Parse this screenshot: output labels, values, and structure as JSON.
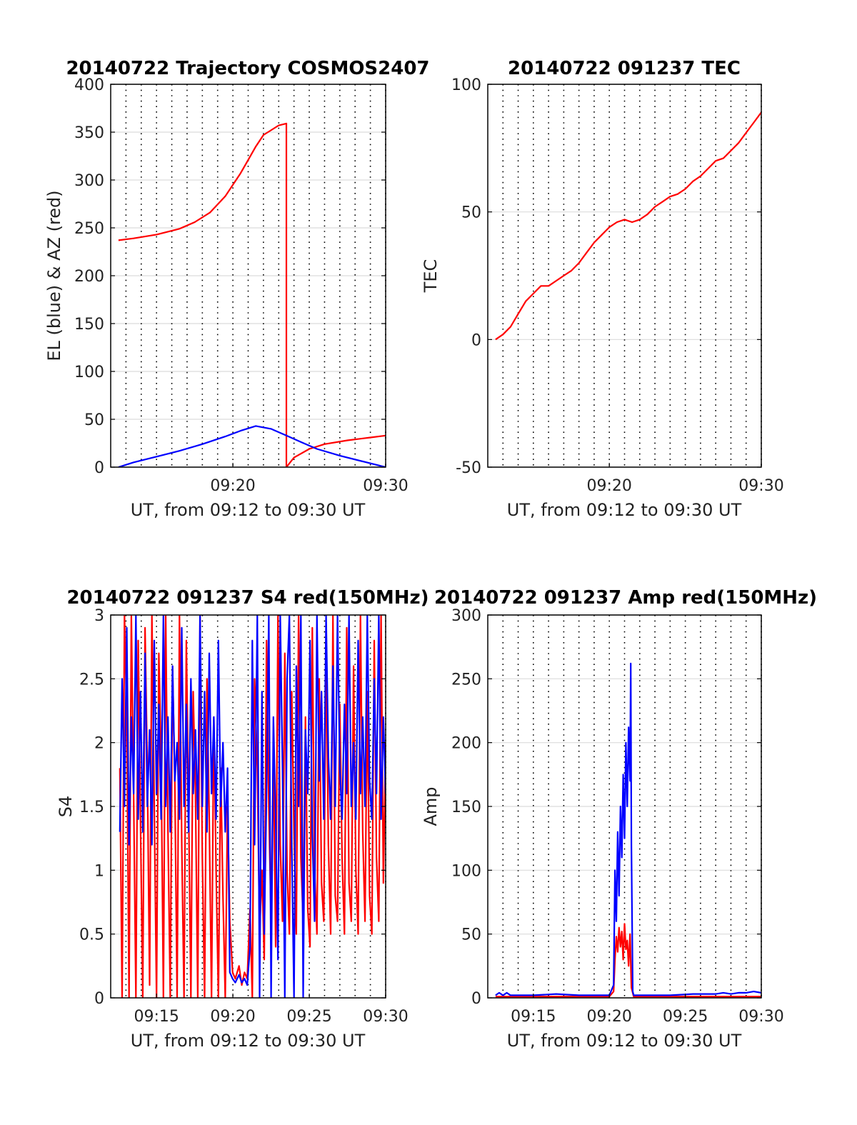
{
  "colors": {
    "el": "#0000ff",
    "az": "#ff0000",
    "grid": "#dcdcdc",
    "vgrid": "#000000",
    "axis": "#000000"
  },
  "chart_data": [
    {
      "id": "trajectory",
      "type": "line",
      "title": "20140722 Trajectory COSMOS2407",
      "xlabel": "UT, from 09:12 to 09:30 UT",
      "ylabel": "EL (blue) & AZ (red)",
      "xlim": [
        9.2,
        9.5
      ],
      "ylim": [
        0,
        400
      ],
      "yticks": [
        {
          "v": 0,
          "label": "0"
        },
        {
          "v": 50,
          "label": "50"
        },
        {
          "v": 100,
          "label": "100"
        },
        {
          "v": 150,
          "label": "150"
        },
        {
          "v": 200,
          "label": "200"
        },
        {
          "v": 250,
          "label": "250"
        },
        {
          "v": 300,
          "label": "300"
        },
        {
          "v": 350,
          "label": "350"
        },
        {
          "v": 400,
          "label": "400"
        }
      ],
      "xticks": [
        {
          "v": 9.3333,
          "label": "09:20"
        },
        {
          "v": 9.5,
          "label": "09:30"
        }
      ],
      "grid": true,
      "series": [
        {
          "name": "AZ",
          "color": "#ff0000",
          "x": [
            9.2085,
            9.225,
            9.25,
            9.275,
            9.2917,
            9.3083,
            9.325,
            9.3417,
            9.35,
            9.3583,
            9.3667,
            9.3833,
            9.3917,
            9.3917,
            9.4,
            9.4167,
            9.4333,
            9.4583,
            9.4833,
            9.5
          ],
          "y": [
            237,
            239,
            243,
            249,
            256,
            266,
            283,
            307,
            321,
            335,
            347,
            357,
            359,
            0,
            10,
            19,
            24,
            28,
            31,
            33
          ]
        },
        {
          "name": "EL",
          "color": "#0000ff",
          "x": [
            9.2085,
            9.225,
            9.25,
            9.275,
            9.3,
            9.325,
            9.3417,
            9.3583,
            9.375,
            9.3917,
            9.4083,
            9.425,
            9.45,
            9.475,
            9.5
          ],
          "y": [
            0,
            5,
            11,
            17,
            24,
            32,
            38,
            43,
            40,
            33,
            26,
            19,
            12,
            6,
            0
          ]
        }
      ]
    },
    {
      "id": "tec",
      "type": "line",
      "title": "20140722 091237 TEC",
      "xlabel": "UT, from 09:12 to 09:30 UT",
      "ylabel": "TEC",
      "xlim": [
        9.2,
        9.5
      ],
      "ylim": [
        -50,
        100
      ],
      "yticks": [
        {
          "v": -50,
          "label": "-50"
        },
        {
          "v": 0,
          "label": "0"
        },
        {
          "v": 50,
          "label": "50"
        },
        {
          "v": 100,
          "label": "100"
        }
      ],
      "xticks": [
        {
          "v": 9.3333,
          "label": "09:20"
        },
        {
          "v": 9.5,
          "label": "09:30"
        }
      ],
      "grid": true,
      "series": [
        {
          "name": "TEC",
          "color": "#ff0000",
          "x": [
            9.2085,
            9.2167,
            9.225,
            9.2333,
            9.2417,
            9.25,
            9.2583,
            9.2667,
            9.275,
            9.2833,
            9.2917,
            9.3,
            9.3083,
            9.3167,
            9.325,
            9.3333,
            9.3417,
            9.35,
            9.3583,
            9.3667,
            9.375,
            9.3833,
            9.3917,
            9.4,
            9.4083,
            9.4167,
            9.425,
            9.4333,
            9.4417,
            9.45,
            9.4583,
            9.4667,
            9.475,
            9.4833,
            9.4917,
            9.5
          ],
          "y": [
            0,
            2,
            5,
            10,
            15,
            18,
            21,
            21,
            23,
            25,
            27,
            30,
            34,
            38,
            41,
            44,
            46,
            47,
            46,
            47,
            49,
            52,
            54,
            56,
            57,
            59,
            62,
            64,
            67,
            70,
            71,
            74,
            77,
            81,
            85,
            89
          ]
        }
      ]
    },
    {
      "id": "s4",
      "type": "line",
      "title": "20140722 091237 S4 red(150MHz)",
      "xlabel": "UT, from 09:12 to 09:30 UT",
      "ylabel": "S4",
      "xlim": [
        9.2,
        9.5
      ],
      "ylim": [
        0,
        3
      ],
      "yticks": [
        {
          "v": 0,
          "label": "0"
        },
        {
          "v": 0.5,
          "label": "0.5"
        },
        {
          "v": 1,
          "label": "1"
        },
        {
          "v": 1.5,
          "label": "1.5"
        },
        {
          "v": 2,
          "label": "2"
        },
        {
          "v": 2.5,
          "label": "2.5"
        },
        {
          "v": 3,
          "label": "3"
        }
      ],
      "xticks": [
        {
          "v": 9.25,
          "label": "09:15"
        },
        {
          "v": 9.3333,
          "label": "09:20"
        },
        {
          "v": 9.4167,
          "label": "09:25"
        },
        {
          "v": 9.5,
          "label": "09:30"
        }
      ],
      "grid": true,
      "series": [
        {
          "name": "red",
          "color": "#ff0000",
          "x": [
            9.21,
            9.2125,
            9.215,
            9.2175,
            9.22,
            9.2225,
            9.225,
            9.2275,
            9.23,
            9.2325,
            9.235,
            9.2375,
            9.24,
            9.2425,
            9.245,
            9.2475,
            9.25,
            9.2525,
            9.255,
            9.2575,
            9.26,
            9.2625,
            9.265,
            9.2675,
            9.27,
            9.2725,
            9.275,
            9.2775,
            9.28,
            9.2825,
            9.285,
            9.2875,
            9.29,
            9.2925,
            9.295,
            9.2975,
            9.3,
            9.3025,
            9.305,
            9.3075,
            9.31,
            9.3125,
            9.315,
            9.3175,
            9.32,
            9.3225,
            9.325,
            9.3275,
            9.33,
            9.333,
            9.336,
            9.34,
            9.343,
            9.346,
            9.349,
            9.352,
            9.3545,
            9.357,
            9.36,
            9.3625,
            9.365,
            9.3675,
            9.37,
            9.3725,
            9.375,
            9.3775,
            9.38,
            9.3825,
            9.385,
            9.3875,
            9.39,
            9.3925,
            9.395,
            9.3975,
            9.4,
            9.4025,
            9.405,
            9.4075,
            9.41,
            9.4125,
            9.415,
            9.4175,
            9.42,
            9.4225,
            9.425,
            9.4275,
            9.43,
            9.4325,
            9.435,
            9.4375,
            9.44,
            9.4425,
            9.445,
            9.4475,
            9.45,
            9.4525,
            9.455,
            9.4575,
            9.46,
            9.4625,
            9.465,
            9.4675,
            9.47,
            9.4725,
            9.475,
            9.4775,
            9.48,
            9.4825,
            9.485,
            9.4875,
            9.49,
            9.4925,
            9.495,
            9.4975,
            9.5
          ],
          "y": [
            1.8,
            0.0,
            3.0,
            2.2,
            0.0,
            3.0,
            1.6,
            0.0,
            2.8,
            1.4,
            0.0,
            2.9,
            1.8,
            0.1,
            3.0,
            1.5,
            0.0,
            2.7,
            1.9,
            0.0,
            3.0,
            1.3,
            0.0,
            2.6,
            1.7,
            0.0,
            3.0,
            1.2,
            0.0,
            2.8,
            1.5,
            0.0,
            2.4,
            1.6,
            0.0,
            3.0,
            1.1,
            0.0,
            2.5,
            1.4,
            0.0,
            2.2,
            1.0,
            0.0,
            1.8,
            0.8,
            0.0,
            1.5,
            0.6,
            0.2,
            0.15,
            0.25,
            0.1,
            0.2,
            0.15,
            0.7,
            0.0,
            2.5,
            1.8,
            0.5,
            1.0,
            0.3,
            2.8,
            1.5,
            0.6,
            1.9,
            0.4,
            3.0,
            1.2,
            0.6,
            2.7,
            1.0,
            0.5,
            2.4,
            1.3,
            0.5,
            3.0,
            1.1,
            0.6,
            2.2,
            0.7,
            0.4,
            2.9,
            1.0,
            0.5,
            2.5,
            0.9,
            0.6,
            2.8,
            1.2,
            0.5,
            3.0,
            0.8,
            0.6,
            2.3,
            1.1,
            0.5,
            2.9,
            0.9,
            0.6,
            2.6,
            1.0,
            0.5,
            3.0,
            1.3,
            0.6,
            2.4,
            0.8,
            0.5,
            2.8,
            1.1,
            0.6,
            3.0,
            0.9,
            2.0
          ]
        },
        {
          "name": "blue",
          "color": "#0000ff",
          "x": [
            9.21,
            9.2125,
            9.215,
            9.2175,
            9.22,
            9.2225,
            9.225,
            9.2275,
            9.23,
            9.2325,
            9.235,
            9.2375,
            9.24,
            9.2425,
            9.245,
            9.2475,
            9.25,
            9.2525,
            9.255,
            9.2575,
            9.26,
            9.2625,
            9.265,
            9.2675,
            9.27,
            9.2725,
            9.275,
            9.2775,
            9.28,
            9.2825,
            9.285,
            9.2875,
            9.29,
            9.2925,
            9.295,
            9.2975,
            9.3,
            9.3025,
            9.305,
            9.3075,
            9.31,
            9.3125,
            9.315,
            9.3175,
            9.32,
            9.3225,
            9.325,
            9.3275,
            9.33,
            9.333,
            9.336,
            9.34,
            9.343,
            9.346,
            9.349,
            9.352,
            9.3545,
            9.357,
            9.36,
            9.3625,
            9.365,
            9.3675,
            9.37,
            9.3725,
            9.375,
            9.3775,
            9.38,
            9.3825,
            9.385,
            9.3875,
            9.39,
            9.3925,
            9.395,
            9.3975,
            9.4,
            9.4025,
            9.405,
            9.4075,
            9.41,
            9.4125,
            9.415,
            9.4175,
            9.42,
            9.4225,
            9.425,
            9.4275,
            9.43,
            9.4325,
            9.435,
            9.4375,
            9.44,
            9.4425,
            9.445,
            9.4475,
            9.45,
            9.4525,
            9.455,
            9.4575,
            9.46,
            9.4625,
            9.465,
            9.4675,
            9.47,
            9.4725,
            9.475,
            9.4775,
            9.48,
            9.4825,
            9.485,
            9.4875,
            9.49,
            9.4925,
            9.495,
            9.4975,
            9.5
          ],
          "y": [
            1.3,
            2.5,
            1.5,
            2.9,
            1.2,
            2.2,
            1.6,
            3.0,
            1.4,
            2.4,
            1.3,
            2.7,
            1.5,
            2.1,
            1.2,
            2.8,
            1.6,
            2.3,
            1.4,
            3.0,
            1.5,
            2.2,
            1.3,
            2.6,
            1.7,
            2.0,
            1.4,
            2.9,
            1.5,
            2.3,
            1.3,
            2.5,
            1.6,
            2.1,
            1.4,
            3.0,
            1.5,
            2.4,
            1.3,
            2.7,
            1.6,
            2.2,
            1.4,
            2.8,
            1.5,
            2.0,
            1.3,
            1.8,
            0.2,
            0.15,
            0.12,
            0.18,
            0.12,
            0.15,
            0.1,
            0.4,
            2.8,
            1.2,
            3.0,
            0.0,
            2.4,
            0.5,
            1.6,
            3.0,
            0.0,
            2.2,
            1.4,
            0.3,
            3.0,
            1.8,
            0.0,
            2.5,
            3.0,
            1.2,
            0.0,
            2.6,
            1.5,
            3.0,
            0.0,
            2.1,
            1.6,
            2.8,
            1.3,
            0.6,
            3.0,
            1.7,
            2.4,
            1.4,
            3.0,
            1.9,
            1.4,
            2.6,
            1.5,
            3.0,
            1.8,
            1.4,
            2.3,
            1.6,
            3.0,
            1.5,
            2.0,
            1.4,
            2.8,
            1.6,
            2.2,
            1.5,
            3.0,
            1.7,
            1.4,
            2.5,
            1.6,
            3.0,
            1.4,
            2.2,
            1.6
          ]
        }
      ]
    },
    {
      "id": "amp",
      "type": "line",
      "title": "20140722 091237 Amp red(150MHz)",
      "xlabel": "UT, from 09:12 to 09:30 UT",
      "ylabel": "Amp",
      "xlim": [
        9.2,
        9.5
      ],
      "ylim": [
        0,
        300
      ],
      "yticks": [
        {
          "v": 0,
          "label": "0"
        },
        {
          "v": 50,
          "label": "50"
        },
        {
          "v": 100,
          "label": "100"
        },
        {
          "v": 150,
          "label": "150"
        },
        {
          "v": 200,
          "label": "200"
        },
        {
          "v": 250,
          "label": "250"
        },
        {
          "v": 300,
          "label": "300"
        }
      ],
      "xticks": [
        {
          "v": 9.25,
          "label": "09:15"
        },
        {
          "v": 9.3333,
          "label": "09:20"
        },
        {
          "v": 9.4167,
          "label": "09:25"
        },
        {
          "v": 9.5,
          "label": "09:30"
        }
      ],
      "grid": true,
      "series": [
        {
          "name": "red",
          "color": "#ff0000",
          "x": [
            9.2085,
            9.3333,
            9.338,
            9.3395,
            9.341,
            9.3425,
            9.344,
            9.3455,
            9.347,
            9.3485,
            9.35,
            9.3515,
            9.353,
            9.3545,
            9.356,
            9.3575,
            9.36,
            9.5
          ],
          "y": [
            1,
            1,
            5,
            30,
            48,
            36,
            55,
            40,
            52,
            30,
            58,
            38,
            45,
            25,
            50,
            8,
            1,
            1
          ]
        },
        {
          "name": "blue",
          "color": "#0000ff",
          "x": [
            9.2085,
            9.2125,
            9.2167,
            9.2208,
            9.225,
            9.25,
            9.275,
            9.3,
            9.3333,
            9.338,
            9.3395,
            9.341,
            9.3425,
            9.344,
            9.3455,
            9.347,
            9.3485,
            9.35,
            9.3515,
            9.353,
            9.3545,
            9.356,
            9.3568,
            9.3575,
            9.359,
            9.36,
            9.3625,
            9.375,
            9.4,
            9.425,
            9.45,
            9.4583,
            9.4667,
            9.475,
            9.4833,
            9.4917,
            9.5
          ],
          "y": [
            2,
            4,
            2,
            4,
            2,
            2,
            3,
            2,
            2,
            10,
            100,
            60,
            130,
            80,
            150,
            110,
            175,
            125,
            200,
            150,
            212,
            170,
            262,
            120,
            5,
            2,
            2,
            2,
            2,
            3,
            3,
            4,
            3,
            4,
            4,
            5,
            4
          ]
        }
      ]
    }
  ]
}
